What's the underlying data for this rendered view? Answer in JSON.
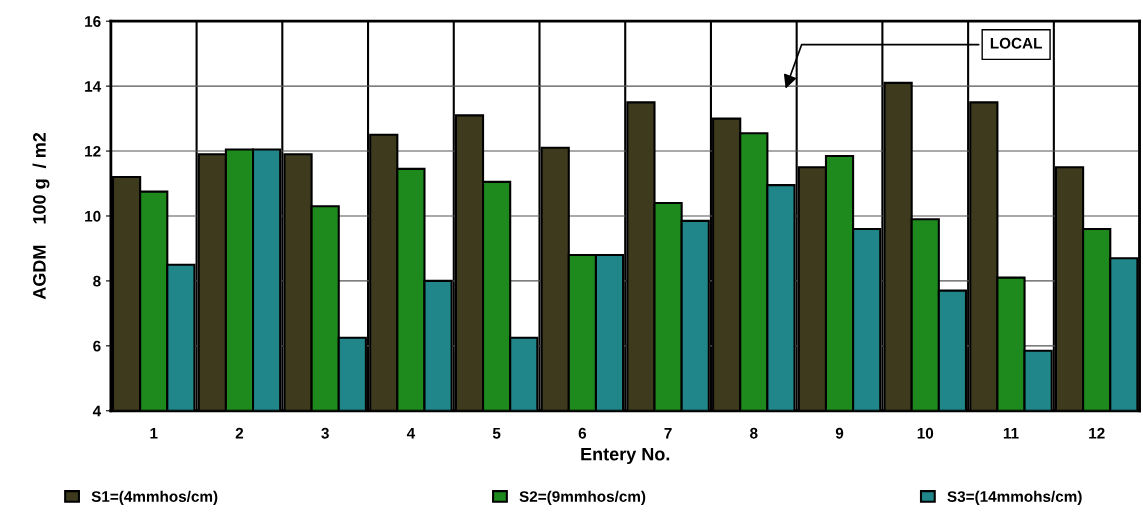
{
  "chart_data": {
    "type": "bar",
    "xlabel": "Entery No.",
    "ylabel": "AGDM    100 g  / m2",
    "categories": [
      "1",
      "2",
      "3",
      "4",
      "5",
      "6",
      "7",
      "8",
      "9",
      "10",
      "11",
      "12"
    ],
    "series": [
      {
        "name": "S1=(4mmhos/cm)",
        "color": "#3d3a1e",
        "values": [
          11.2,
          11.9,
          11.9,
          12.5,
          13.1,
          12.1,
          13.5,
          13.0,
          11.5,
          14.1,
          13.5,
          11.5
        ]
      },
      {
        "name": "S2=(9mmhos/cm)",
        "color": "#1e8a1e",
        "values": [
          10.75,
          12.05,
          10.3,
          11.45,
          11.05,
          8.8,
          10.4,
          12.55,
          11.85,
          9.9,
          8.1,
          9.6
        ]
      },
      {
        "name": "S3=(14mmohs/cm)",
        "color": "#20868a",
        "values": [
          8.5,
          12.05,
          6.25,
          8.0,
          6.25,
          8.8,
          9.85,
          10.95,
          9.6,
          7.7,
          5.85,
          8.7
        ]
      }
    ],
    "ylim": [
      4,
      16
    ],
    "yticks": [
      4,
      6,
      8,
      10,
      12,
      14,
      16
    ],
    "grid": true,
    "legend": "bottom",
    "annotations": [
      "LOCAL"
    ]
  }
}
